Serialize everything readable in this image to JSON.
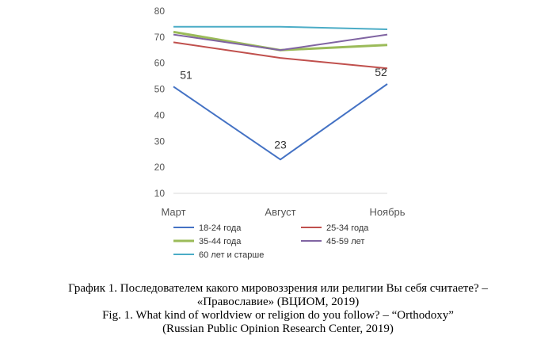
{
  "chart_data": {
    "type": "line",
    "categories": [
      "Март",
      "Август",
      "Ноябрь"
    ],
    "ylim": [
      10,
      80
    ],
    "yticks": [
      10,
      20,
      30,
      40,
      50,
      60,
      70,
      80
    ],
    "grid": false,
    "legend_position": "bottom",
    "series": [
      {
        "name": "18-24 года",
        "color": "#4472c4",
        "values": [
          51,
          23,
          52
        ],
        "data_labels": [
          "51",
          "23",
          "52"
        ]
      },
      {
        "name": "25-34 года",
        "color": "#c0504d",
        "values": [
          68,
          62,
          58
        ]
      },
      {
        "name": "35-44 года",
        "color": "#9bbb59",
        "values": [
          72,
          65,
          67
        ]
      },
      {
        "name": "45-59 лет",
        "color": "#8064a2",
        "values": [
          71,
          65,
          71
        ]
      },
      {
        "name": "60 лет и старше",
        "color": "#4bacc6",
        "values": [
          74,
          74,
          73
        ]
      }
    ]
  },
  "caption": {
    "line1": "График 1. Последователем какого мировоззрения или религии Вы себя считаете? –",
    "line2": "«Православие» (ВЦИОМ, 2019)",
    "line3": "Fig. 1. What kind of worldview or religion do you follow? – “Orthodoxy”",
    "line4": "(Russian Public Opinion Research Center, 2019)"
  }
}
